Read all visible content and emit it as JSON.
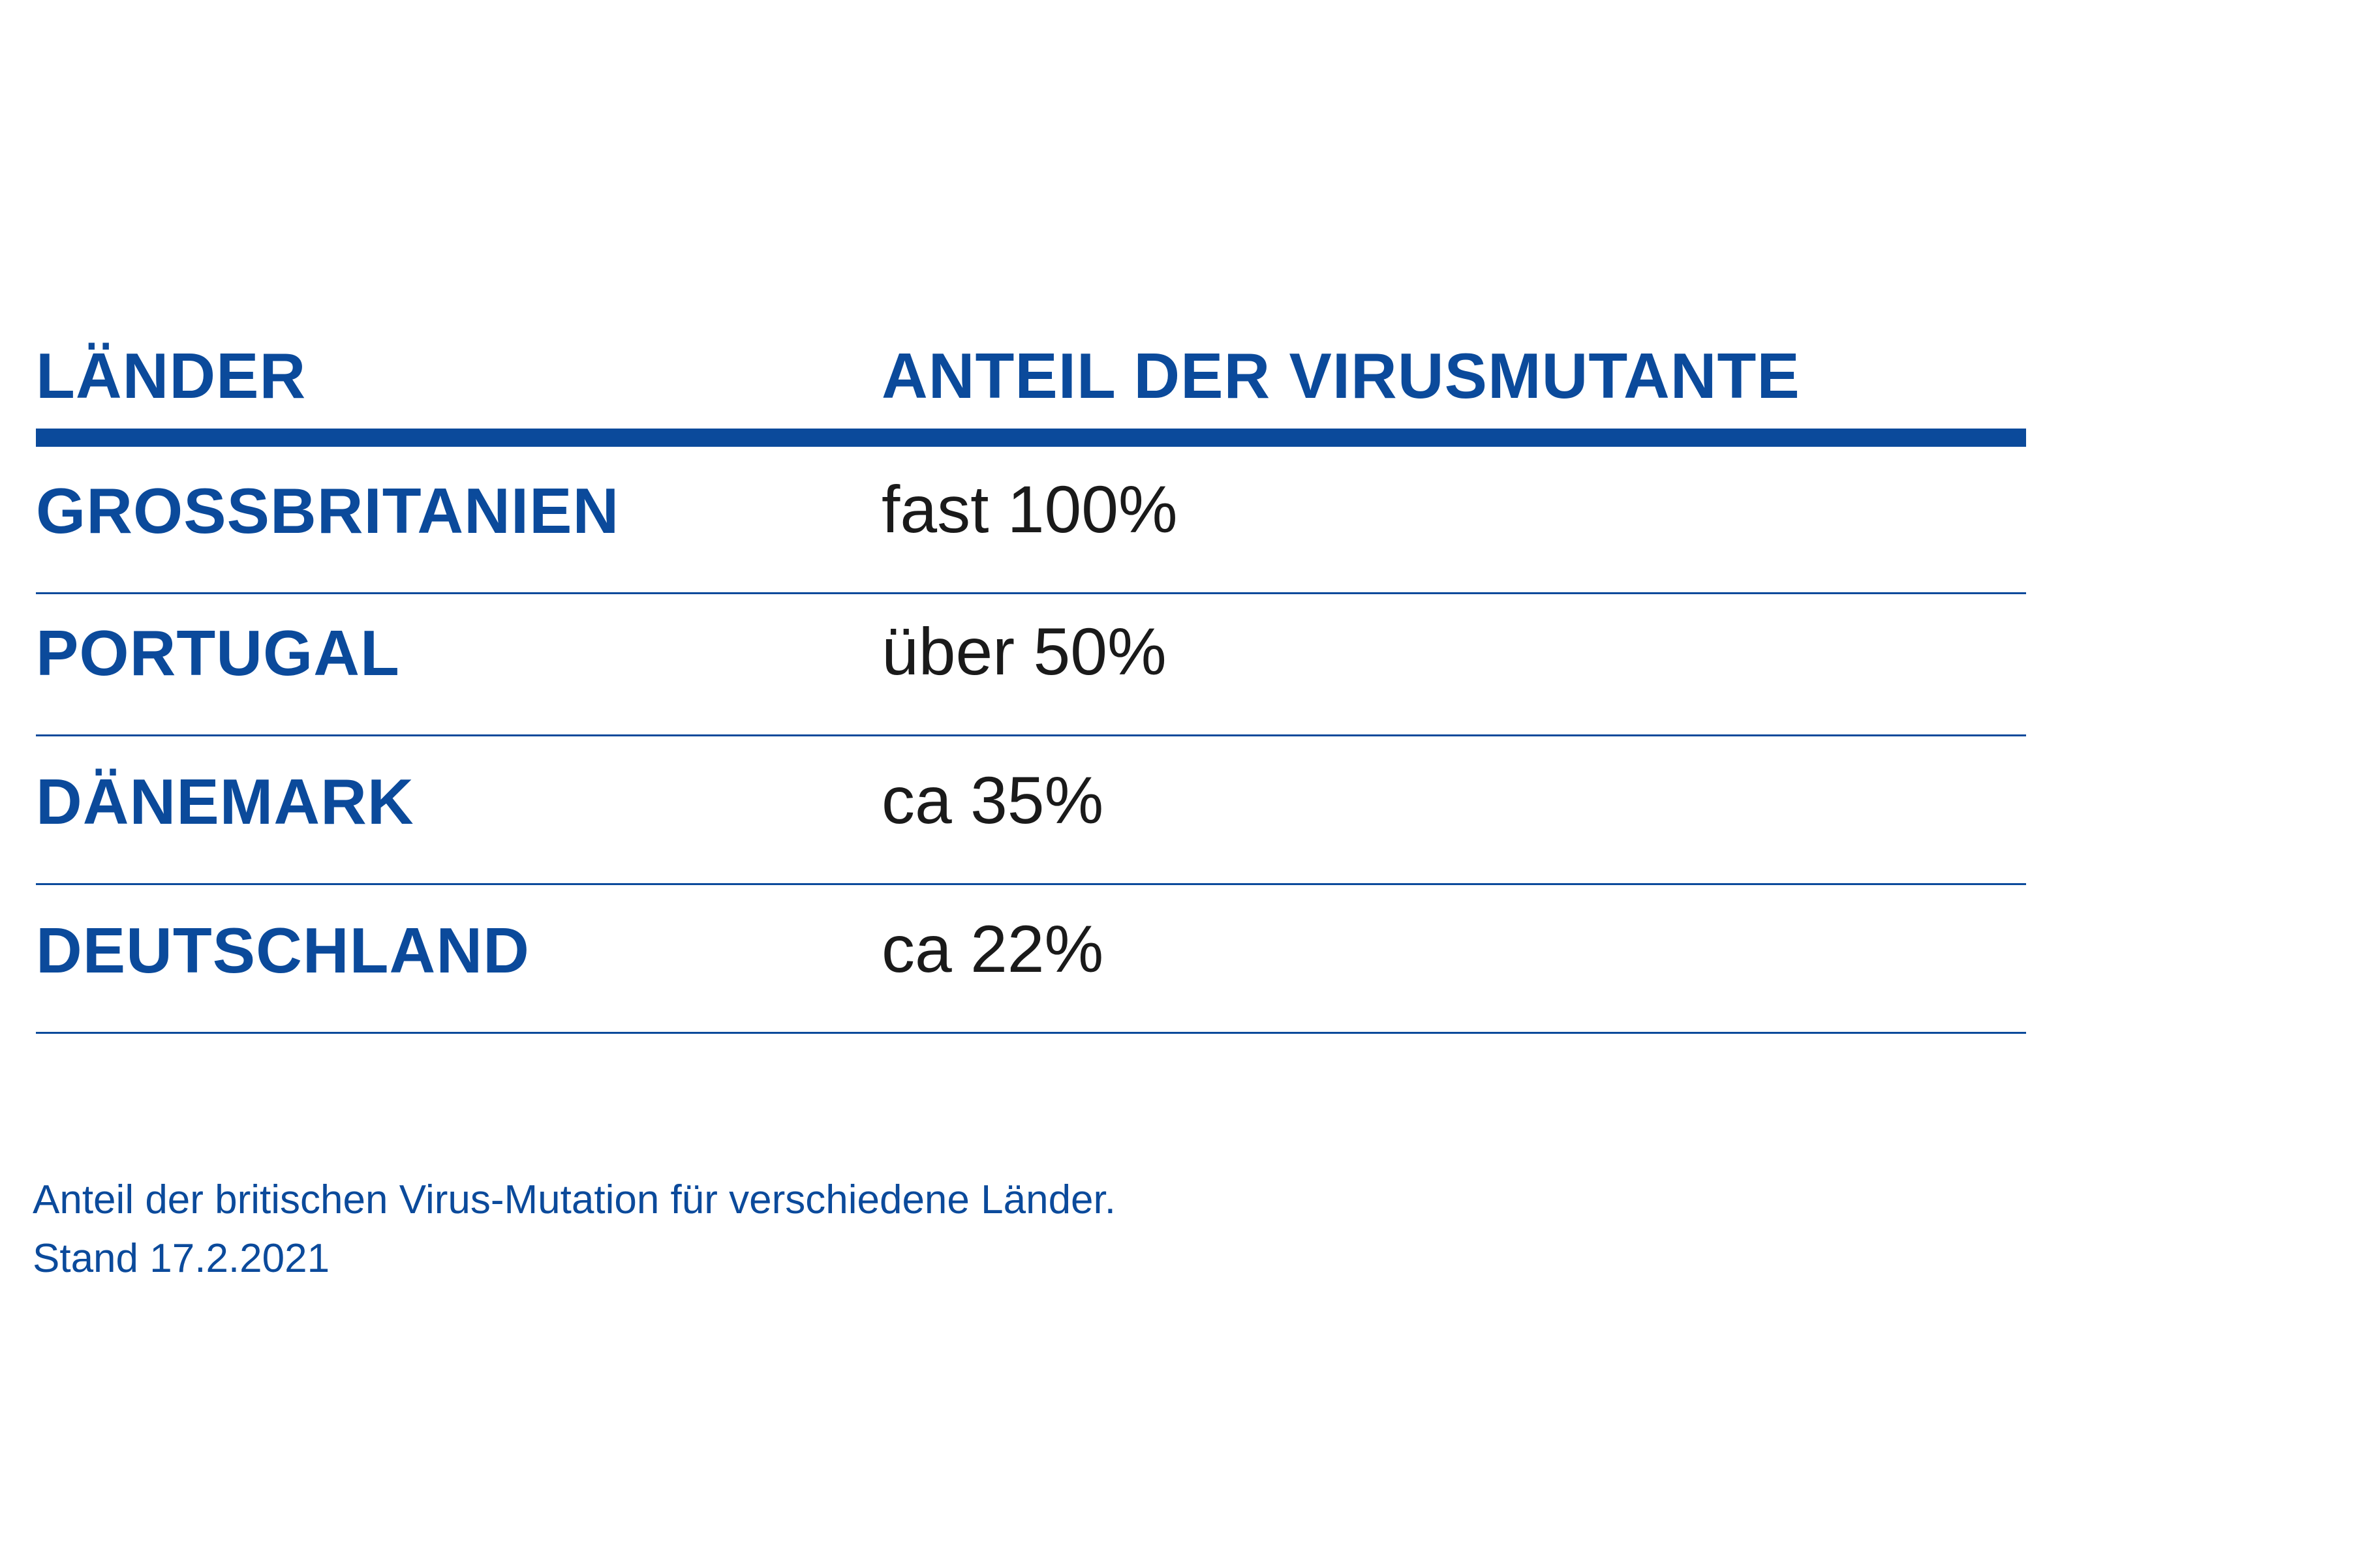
{
  "chart_data": {
    "type": "table",
    "columns": [
      "LÄNDER",
      "ANTEIL DER VIRUSMUTANTE"
    ],
    "rows": [
      {
        "country": "GROSSBRITANIEN",
        "share": "fast 100%"
      },
      {
        "country": "PORTUGAL",
        "share": "über 50%"
      },
      {
        "country": "DÄNEMARK",
        "share": "ca 35%"
      },
      {
        "country": "DEUTSCHLAND",
        "share": "ca 22%"
      }
    ]
  },
  "caption": {
    "line1": "Anteil der britischen Virus-Mutation für verschiedene Länder.",
    "line2": "Stand 17.2.2021"
  },
  "colors": {
    "accent": "#0b4a9b",
    "value_text": "#1a1a1a",
    "background": "#ffffff"
  }
}
